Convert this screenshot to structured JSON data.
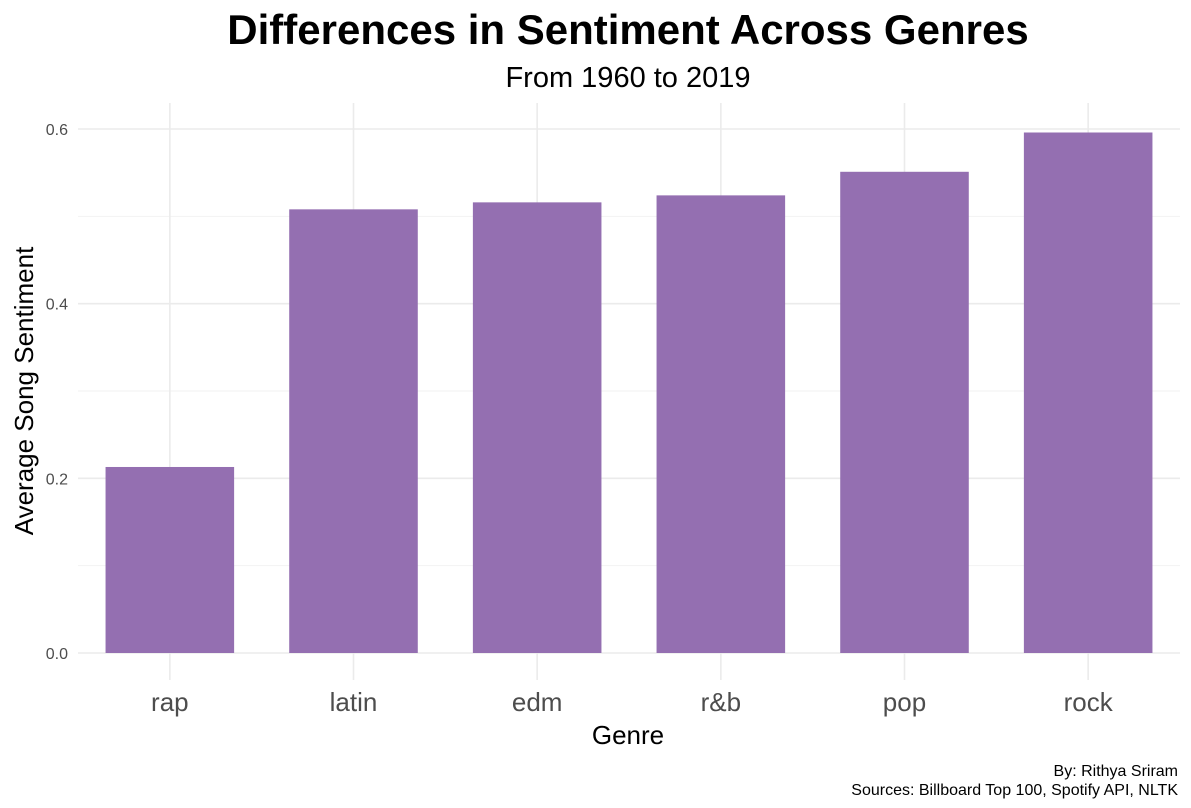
{
  "chart_data": {
    "type": "bar",
    "title": "Differences in Sentiment Across Genres",
    "subtitle": "From 1960 to 2019",
    "xlabel": "Genre",
    "ylabel": "Average Song Sentiment",
    "categories": [
      "rap",
      "latin",
      "edm",
      "r&b",
      "pop",
      "rock"
    ],
    "values": [
      0.213,
      0.508,
      0.516,
      0.524,
      0.551,
      0.596
    ],
    "ylim": [
      0,
      0.62
    ],
    "yticks": [
      0.0,
      0.2,
      0.4,
      0.6
    ],
    "ytick_labels": [
      "0.0",
      "0.2",
      "0.4",
      "0.6"
    ],
    "grid": true,
    "legend": "none",
    "bar_color": "#946fb1",
    "caption": [
      "By: Rithya Sriram",
      "Sources: Billboard Top 100, Spotify API, NLTK"
    ]
  }
}
